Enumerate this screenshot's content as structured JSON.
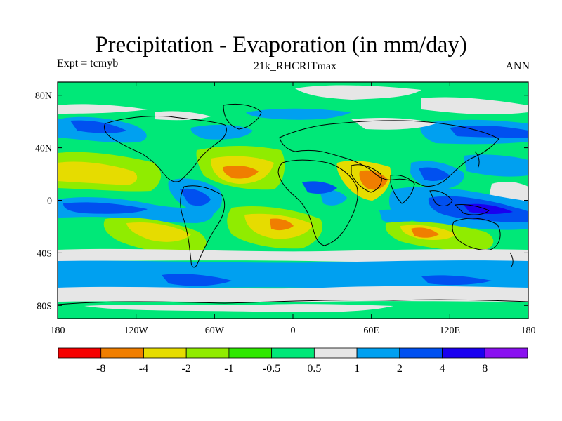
{
  "header": {
    "title": "Precipitation - Evaporation (in mm/day)",
    "expt": "Expt = tcmyb",
    "run": "21k_RHCRITmax",
    "season": "ANN"
  },
  "map": {
    "projection": "cylindrical-equidistant",
    "lon_range": [
      -180,
      180
    ],
    "lat_range": [
      -90,
      90
    ],
    "lon_ticks": [
      {
        "value": -180,
        "label": "180"
      },
      {
        "value": -120,
        "label": "120W"
      },
      {
        "value": -60,
        "label": "60W"
      },
      {
        "value": 0,
        "label": "0"
      },
      {
        "value": 60,
        "label": "60E"
      },
      {
        "value": 120,
        "label": "120E"
      },
      {
        "value": 180,
        "label": "180"
      }
    ],
    "lat_ticks": [
      {
        "value": 80,
        "label": "80N"
      },
      {
        "value": 40,
        "label": "40N"
      },
      {
        "value": 0,
        "label": "0"
      },
      {
        "value": -40,
        "label": "40S"
      },
      {
        "value": -80,
        "label": "80S"
      }
    ]
  },
  "colorbar": {
    "colors": [
      "#f50000",
      "#f07e00",
      "#e6dc00",
      "#90ec00",
      "#2ee800",
      "#00e878",
      "#e6e6e6",
      "#00a0f0",
      "#0050f0",
      "#1a00f0",
      "#8a10f0"
    ],
    "labels": [
      "-8",
      "-4",
      "-2",
      "-1",
      "-0.5",
      "0.5",
      "1",
      "2",
      "4",
      "8"
    ]
  },
  "icons": {
    "coastline": "coastline-lines"
  }
}
